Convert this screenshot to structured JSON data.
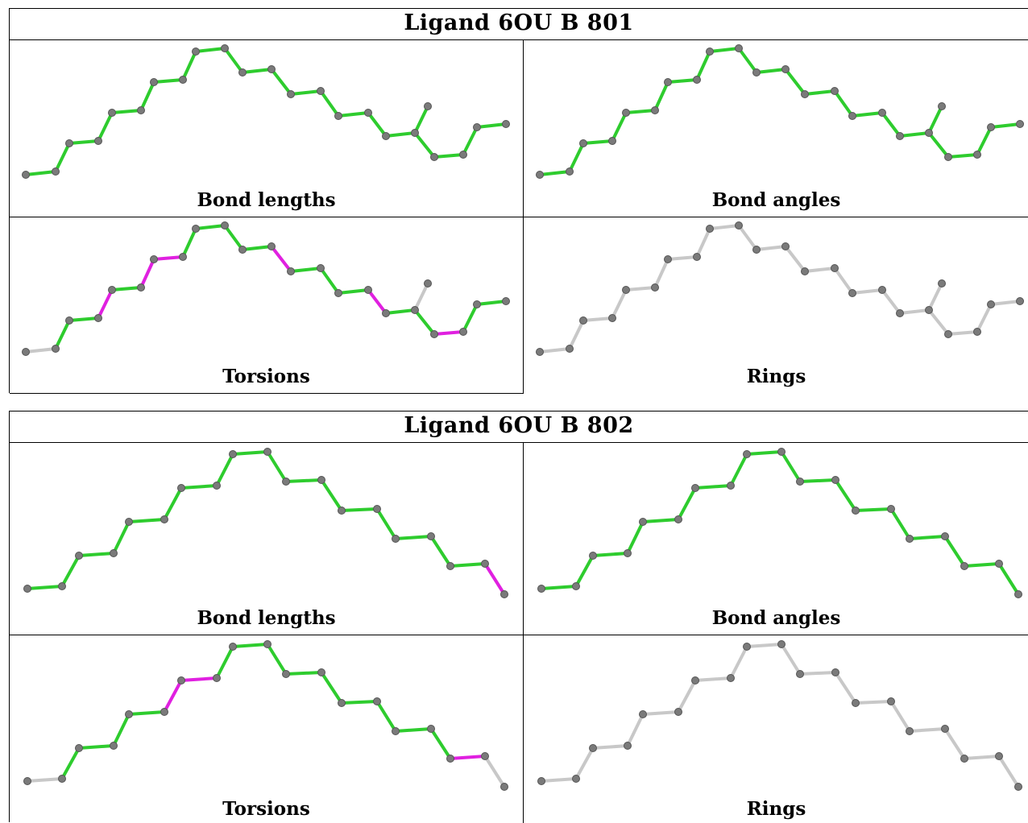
{
  "colors": {
    "ok": "#2ecc2e",
    "outlier": "#e020e0",
    "none": "#c8c8c8",
    "atom": "#7a7a7a",
    "atom_edge": "#555555"
  },
  "panels": [
    {
      "title": "Ligand 6OU B 801",
      "cells": [
        {
          "caption": "Bond lengths",
          "molecule": "m801",
          "bond_colors": "ok"
        },
        {
          "caption": "Bond angles",
          "molecule": "m801",
          "bond_colors": "ok"
        },
        {
          "caption": "Torsions",
          "molecule": "m801",
          "bond_colors": "torsion801"
        },
        {
          "caption": "Rings",
          "molecule": "m801",
          "bond_colors": "none"
        }
      ]
    },
    {
      "title": "Ligand 6OU B 802",
      "cells": [
        {
          "caption": "Bond lengths",
          "molecule": "m802",
          "bond_colors": "length802"
        },
        {
          "caption": "Bond angles",
          "molecule": "m802",
          "bond_colors": "ok"
        },
        {
          "caption": "Torsions",
          "molecule": "m802",
          "bond_colors": "torsion802"
        },
        {
          "caption": "Rings",
          "molecule": "m802",
          "bond_colors": "none"
        }
      ]
    }
  ]
}
